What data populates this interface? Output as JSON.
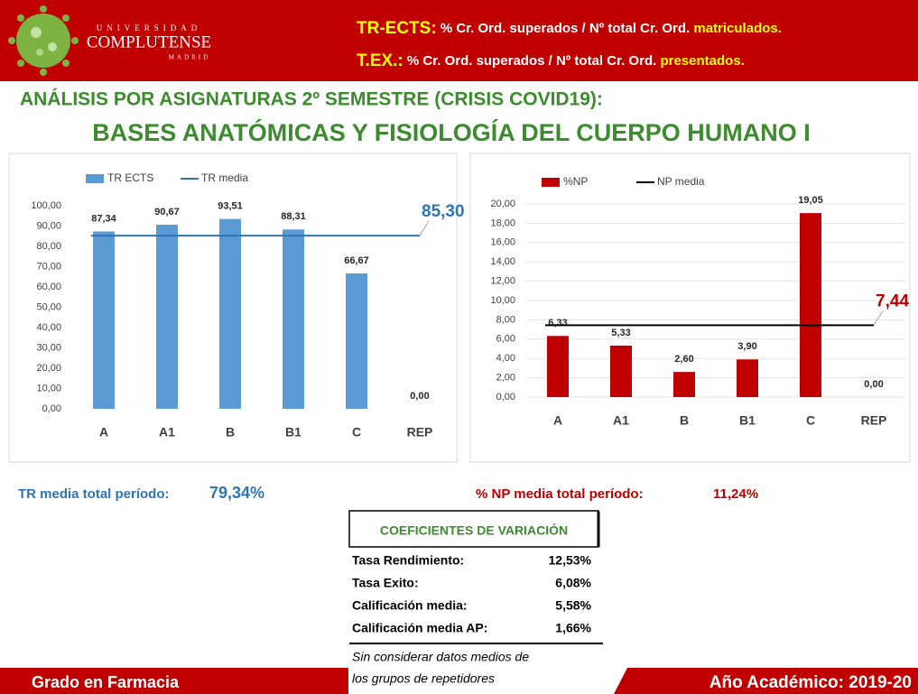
{
  "header": {
    "logo": {
      "line1": "UNIVERSIDAD",
      "line2": "COMPLUTENSE",
      "line3": "MADRID"
    },
    "line1": {
      "label": "TR-ECTS:",
      "text": "% Cr. Ord. superados / Nº total Cr. Ord.",
      "highlight": "matriculados."
    },
    "line2": {
      "label": "T.EX.:",
      "text": "% Cr. Ord. superados / Nº total Cr. Ord.",
      "highlight": "presentados."
    }
  },
  "title": "ANÁLISIS POR ASIGNATURAS 2º SEMESTRE (CRISIS COVID19):",
  "subtitle": "BASES ANATÓMICAS Y FISIOLOGÍA DEL CUERPO HUMANO I",
  "chart_data": [
    {
      "type": "bar",
      "categories": [
        "A",
        "A1",
        "B",
        "B1",
        "C",
        "REP"
      ],
      "series": [
        {
          "name": "TR ECTS",
          "color": "#5b9bd5",
          "values": [
            87.34,
            90.67,
            93.51,
            88.31,
            66.67,
            0
          ],
          "value_labels": [
            "87,34",
            "90,67",
            "93,51",
            "88,31",
            "66,67",
            "0,00"
          ]
        }
      ],
      "reference_line": {
        "name": "TR media",
        "value": 85.3,
        "label": "85,30",
        "color": "#2e75b6"
      },
      "ylim": [
        0,
        100
      ],
      "yticks": [
        {
          "value": 0,
          "label": "0,00"
        },
        {
          "value": 10,
          "label": "10,00"
        },
        {
          "value": 20,
          "label": "20,00"
        },
        {
          "value": 30,
          "label": "30,00"
        },
        {
          "value": 40,
          "label": "40,00"
        },
        {
          "value": 50,
          "label": "50,00"
        },
        {
          "value": 60,
          "label": "60,00"
        },
        {
          "value": 70,
          "label": "70,00"
        },
        {
          "value": 80,
          "label": "80,00"
        },
        {
          "value": 90,
          "label": "90,00"
        },
        {
          "value": 100,
          "label": "100,00"
        }
      ],
      "grid": false
    },
    {
      "type": "bar",
      "categories": [
        "A",
        "A1",
        "B",
        "B1",
        "C",
        "REP"
      ],
      "series": [
        {
          "name": "%NP",
          "color": "#c00000",
          "values": [
            6.33,
            5.33,
            2.6,
            3.9,
            19.05,
            0
          ],
          "value_labels": [
            "6,33",
            "5,33",
            "2,60",
            "3,90",
            "19,05",
            "0,00"
          ]
        }
      ],
      "reference_line": {
        "name": "NP media",
        "value": 7.44,
        "label": "7,44",
        "color": "#000000",
        "label_color": "#c00000"
      },
      "ylim": [
        0,
        20
      ],
      "yticks": [
        {
          "value": 0,
          "label": "0,00"
        },
        {
          "value": 2,
          "label": "2,00"
        },
        {
          "value": 4,
          "label": "4,00"
        },
        {
          "value": 6,
          "label": "6,00"
        },
        {
          "value": 8,
          "label": "8,00"
        },
        {
          "value": 10,
          "label": "10,00"
        },
        {
          "value": 12,
          "label": "12,00"
        },
        {
          "value": 14,
          "label": "14,00"
        },
        {
          "value": 16,
          "label": "16,00"
        },
        {
          "value": 18,
          "label": "18,00"
        },
        {
          "value": 20,
          "label": "20,00"
        }
      ],
      "grid": true
    }
  ],
  "summary": {
    "tr_label": "TR media total período:",
    "tr_value": "79,34%",
    "np_label": "% NP media total período:",
    "np_value": "11,24%"
  },
  "table": {
    "title": "COEFICIENTES DE VARIACIÓN",
    "rows": [
      [
        "Tasa Rendimiento:",
        "12,53%"
      ],
      [
        "Tasa Exito:",
        "6,08%"
      ],
      [
        "Calificación media:",
        "5,58%"
      ],
      [
        "Calificación media AP:",
        "1,66%"
      ]
    ],
    "note": [
      "Sin considerar datos medios de",
      "los grupos de repetidores"
    ]
  },
  "footer": {
    "left": "Grado en Farmacia",
    "right": "Año Académico: 2019-20"
  }
}
